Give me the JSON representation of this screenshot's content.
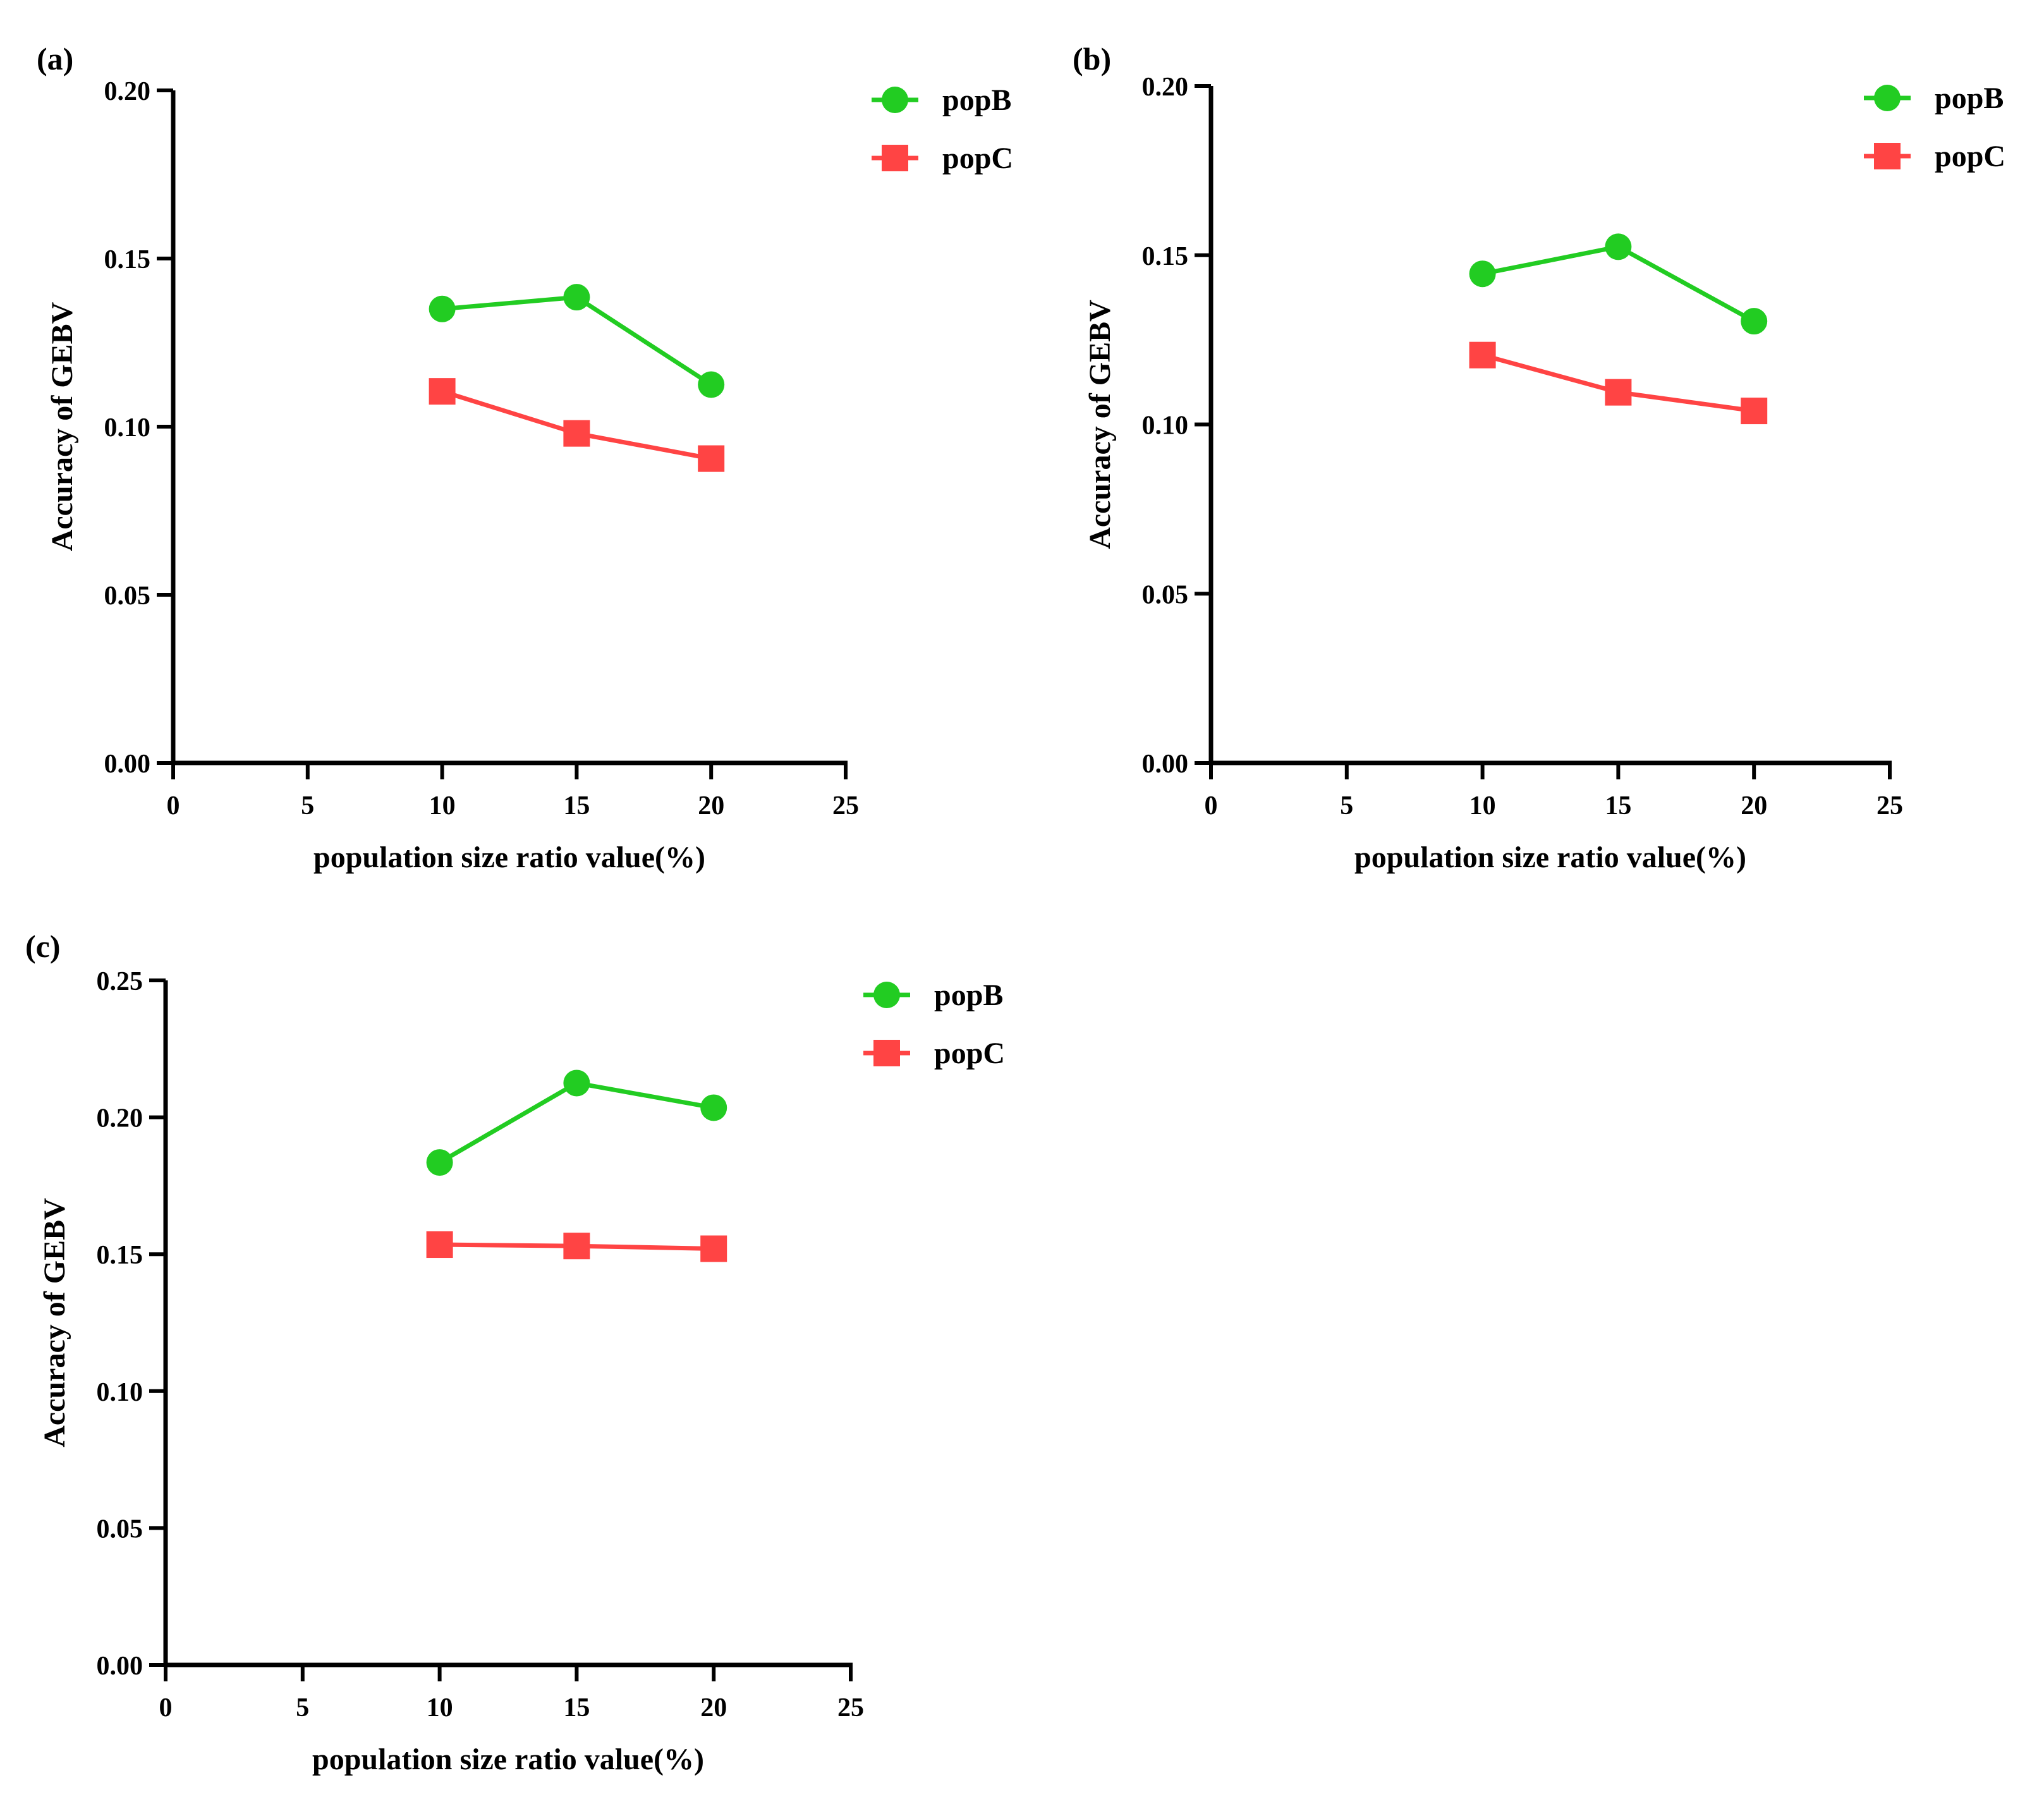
{
  "colors": {
    "popB": "#22cc22",
    "popC": "#ff4444",
    "axis": "#000000"
  },
  "chart_data": [
    {
      "type": "line",
      "panel_label": "(a)",
      "xlabel": "population size ratio value(%)",
      "ylabel": "Accuracy of GEBV",
      "xlim": [
        0,
        25
      ],
      "ylim": [
        0,
        0.2
      ],
      "x_ticks": [
        0,
        5,
        10,
        15,
        20,
        25
      ],
      "x_tick_labels": [
        "0",
        "5",
        "10",
        "15",
        "20",
        "25"
      ],
      "y_ticks": [
        0,
        0.05,
        0.1,
        0.15,
        0.2
      ],
      "y_tick_labels": [
        "0.00",
        "0.05",
        "0.10",
        "0.15",
        "0.20"
      ],
      "legend_position": "top-right",
      "series": [
        {
          "name": "popB",
          "marker": "circle",
          "x": [
            10,
            15,
            20
          ],
          "values": [
            0.135,
            0.1385,
            0.1125
          ]
        },
        {
          "name": "popC",
          "marker": "square",
          "x": [
            10,
            15,
            20
          ],
          "values": [
            0.1105,
            0.098,
            0.0905
          ]
        }
      ]
    },
    {
      "type": "line",
      "panel_label": "(b)",
      "xlabel": "population size ratio value(%)",
      "ylabel": "Accuracy of GEBV",
      "xlim": [
        0,
        25
      ],
      "ylim": [
        0,
        0.2
      ],
      "x_ticks": [
        0,
        5,
        10,
        15,
        20,
        25
      ],
      "x_tick_labels": [
        "0",
        "5",
        "10",
        "15",
        "20",
        "25"
      ],
      "y_ticks": [
        0,
        0.05,
        0.1,
        0.15,
        0.2
      ],
      "y_tick_labels": [
        "0.00",
        "0.05",
        "0.10",
        "0.15",
        "0.20"
      ],
      "legend_position": "top-right",
      "series": [
        {
          "name": "popB",
          "marker": "circle",
          "x": [
            10,
            15,
            20
          ],
          "values": [
            0.1445,
            0.1525,
            0.1305
          ]
        },
        {
          "name": "popC",
          "marker": "square",
          "x": [
            10,
            15,
            20
          ],
          "values": [
            0.1205,
            0.1095,
            0.104
          ]
        }
      ]
    },
    {
      "type": "line",
      "panel_label": "(c)",
      "xlabel": "population size ratio value(%)",
      "ylabel": "Accuracy of GEBV",
      "xlim": [
        0,
        25
      ],
      "ylim": [
        0,
        0.25
      ],
      "x_ticks": [
        0,
        5,
        10,
        15,
        20,
        25
      ],
      "x_tick_labels": [
        "0",
        "5",
        "10",
        "15",
        "20",
        "25"
      ],
      "y_ticks": [
        0,
        0.05,
        0.1,
        0.15,
        0.2,
        0.25
      ],
      "y_tick_labels": [
        "0.00",
        "0.05",
        "0.10",
        "0.15",
        "0.20",
        "0.25"
      ],
      "legend_position": "top-right",
      "series": [
        {
          "name": "popB",
          "marker": "circle",
          "x": [
            10,
            15,
            20
          ],
          "values": [
            0.1835,
            0.2125,
            0.2035
          ]
        },
        {
          "name": "popC",
          "marker": "square",
          "x": [
            10,
            15,
            20
          ],
          "values": [
            0.1535,
            0.153,
            0.152
          ]
        }
      ]
    }
  ]
}
